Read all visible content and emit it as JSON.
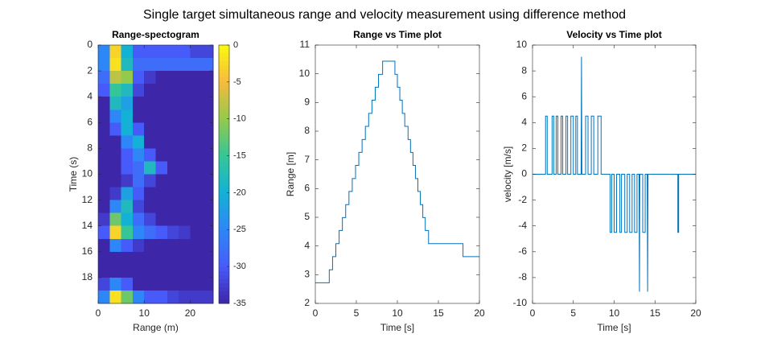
{
  "title": "Single target simultaneous range and velocity measurement using difference method",
  "chart_data": [
    {
      "type": "heatmap",
      "title": "Range-spectogram",
      "xlabel": "Range (m)",
      "ylabel": "Time (s)",
      "x_edges": [
        0,
        2.5,
        5,
        7.5,
        10,
        12.5,
        15,
        17.5,
        20,
        22.5,
        25
      ],
      "y_edges": [
        0,
        1,
        2,
        3,
        4,
        5,
        6,
        7,
        8,
        9,
        10,
        11,
        12,
        13,
        14,
        15,
        16,
        17,
        18,
        19,
        20
      ],
      "values": [
        [
          -25,
          -3,
          -20,
          -30,
          -30,
          -30,
          -30,
          -30,
          -32,
          -32
        ],
        [
          -25,
          -2,
          -18,
          -28,
          -28,
          -28,
          -28,
          -28,
          -28,
          -28
        ],
        [
          -28,
          -8,
          -10,
          -30,
          -33,
          -35,
          -35,
          -35,
          -35,
          -35
        ],
        [
          -30,
          -15,
          -18,
          -32,
          -35,
          -35,
          -35,
          -35,
          -35,
          -35
        ],
        [
          -35,
          -18,
          -22,
          -35,
          -35,
          -35,
          -35,
          -35,
          -35,
          -35
        ],
        [
          -35,
          -25,
          -20,
          -35,
          -35,
          -35,
          -35,
          -35,
          -35,
          -35
        ],
        [
          -35,
          -30,
          -20,
          -30,
          -35,
          -35,
          -35,
          -35,
          -35,
          -35
        ],
        [
          -35,
          -35,
          -25,
          -20,
          -35,
          -35,
          -35,
          -35,
          -35,
          -35
        ],
        [
          -35,
          -35,
          -30,
          -25,
          -30,
          -35,
          -35,
          -35,
          -35,
          -35
        ],
        [
          -35,
          -35,
          -30,
          -28,
          -18,
          -30,
          -35,
          -35,
          -35,
          -35
        ],
        [
          -35,
          -35,
          -33,
          -28,
          -32,
          -35,
          -35,
          -35,
          -35,
          -35
        ],
        [
          -35,
          -33,
          -22,
          -30,
          -35,
          -35,
          -35,
          -35,
          -35,
          -35
        ],
        [
          -35,
          -25,
          -18,
          -32,
          -35,
          -35,
          -35,
          -35,
          -35,
          -35
        ],
        [
          -33,
          -12,
          -20,
          -28,
          -32,
          -35,
          -35,
          -35,
          -35,
          -35
        ],
        [
          -30,
          -3,
          -15,
          -25,
          -28,
          -30,
          -32,
          -33,
          -35,
          -35
        ],
        [
          -35,
          -25,
          -30,
          -33,
          -35,
          -35,
          -35,
          -35,
          -35,
          -35
        ],
        [
          -35,
          -35,
          -35,
          -35,
          -35,
          -35,
          -35,
          -35,
          -35,
          -35
        ],
        [
          -35,
          -35,
          -35,
          -35,
          -35,
          -35,
          -35,
          -35,
          -35,
          -35
        ],
        [
          -32,
          -25,
          -30,
          -35,
          -35,
          -35,
          -35,
          -35,
          -35,
          -35
        ],
        [
          -25,
          -2,
          -12,
          -25,
          -30,
          -30,
          -32,
          -33,
          -33,
          -33
        ]
      ],
      "xlim": [
        0,
        25
      ],
      "ylim": [
        0,
        20
      ],
      "y_reversed": true,
      "xticks": [
        0,
        10,
        20
      ],
      "yticks": [
        0,
        2,
        4,
        6,
        8,
        10,
        12,
        14,
        16,
        18
      ],
      "colormap": "parula",
      "clim": [
        -35,
        0
      ],
      "cticks": [
        0,
        -5,
        -10,
        -15,
        -20,
        -25,
        -30,
        -35
      ]
    },
    {
      "type": "line",
      "title": "Range vs Time plot",
      "xlabel": "Time [s]",
      "ylabel": "Range [m]",
      "color": "#0072bd",
      "x": [
        0,
        1.7,
        1.7,
        2.1,
        2.1,
        2.5,
        2.5,
        2.9,
        2.9,
        3.3,
        3.3,
        3.7,
        3.7,
        4.1,
        4.1,
        4.5,
        4.5,
        4.9,
        4.9,
        5.3,
        5.3,
        5.7,
        5.7,
        6.1,
        6.1,
        6.5,
        6.5,
        6.9,
        6.9,
        7.3,
        7.3,
        7.7,
        7.7,
        8.2,
        8.2,
        9.7,
        9.7,
        10.0,
        10.0,
        10.3,
        10.3,
        10.6,
        10.6,
        10.9,
        10.9,
        11.3,
        11.3,
        11.6,
        11.6,
        11.9,
        11.9,
        12.2,
        12.2,
        12.5,
        12.5,
        12.8,
        12.8,
        13.1,
        13.1,
        13.4,
        13.4,
        13.8,
        13.8,
        18,
        18,
        20
      ],
      "values": [
        2.72,
        2.72,
        3.17,
        3.17,
        3.63,
        3.63,
        4.08,
        4.08,
        4.54,
        4.54,
        4.99,
        4.99,
        5.44,
        5.44,
        5.9,
        5.9,
        6.35,
        6.35,
        6.81,
        6.81,
        7.26,
        7.26,
        7.71,
        7.71,
        8.17,
        8.17,
        8.62,
        8.62,
        9.08,
        9.08,
        9.53,
        9.53,
        9.98,
        9.98,
        10.44,
        10.44,
        9.98,
        9.98,
        9.53,
        9.53,
        9.08,
        9.08,
        8.62,
        8.62,
        8.17,
        8.17,
        7.71,
        7.71,
        7.26,
        7.26,
        6.81,
        6.81,
        6.35,
        6.35,
        5.9,
        5.9,
        5.44,
        5.44,
        4.99,
        4.99,
        4.54,
        4.54,
        4.08,
        4.08,
        3.63,
        3.63
      ],
      "xlim": [
        0,
        20
      ],
      "ylim": [
        2,
        11
      ],
      "xticks": [
        0,
        5,
        10,
        15,
        20
      ],
      "yticks": [
        2,
        3,
        4,
        5,
        6,
        7,
        8,
        9,
        10,
        11
      ]
    },
    {
      "type": "line",
      "title": "Velocity vs Time plot",
      "xlabel": "Time [s]",
      "ylabel": "velocity [m/s]",
      "color": "#0072bd",
      "x": [
        0,
        1.6,
        1.6,
        1.8,
        1.8,
        2.4,
        2.4,
        2.6,
        2.6,
        2.9,
        2.9,
        3.1,
        3.1,
        3.5,
        3.5,
        3.7,
        3.7,
        4.1,
        4.1,
        4.3,
        4.3,
        4.7,
        4.7,
        5.0,
        5.0,
        5.3,
        5.3,
        5.5,
        5.5,
        5.95,
        6.0,
        6.05,
        6.5,
        6.5,
        6.8,
        6.8,
        7.2,
        7.2,
        7.5,
        7.5,
        8.0,
        8.0,
        8.4,
        8.4,
        9.5,
        9.5,
        9.7,
        9.7,
        10.0,
        10.0,
        10.3,
        10.3,
        10.7,
        10.7,
        10.9,
        10.9,
        11.3,
        11.3,
        11.6,
        11.6,
        11.9,
        11.9,
        12.2,
        12.2,
        12.5,
        12.5,
        12.8,
        12.8,
        13.05,
        13.1,
        13.15,
        13.5,
        13.5,
        13.8,
        13.8,
        14.05,
        14.1,
        14.15,
        17.8,
        17.8,
        17.9,
        17.9,
        20
      ],
      "values": [
        0,
        0,
        4.5,
        4.5,
        0,
        0,
        4.5,
        4.5,
        0,
        0,
        4.5,
        4.5,
        0,
        0,
        4.5,
        4.5,
        0,
        0,
        4.5,
        4.5,
        0,
        0,
        4.5,
        4.5,
        0,
        0,
        4.5,
        4.5,
        0,
        0,
        9.1,
        0,
        0,
        4.5,
        4.5,
        0,
        0,
        4.5,
        4.5,
        0,
        0,
        4.5,
        4.5,
        0,
        0,
        -4.5,
        -4.5,
        0,
        0,
        -4.5,
        -4.5,
        0,
        0,
        -4.5,
        -4.5,
        0,
        0,
        -4.5,
        -4.5,
        0,
        0,
        -4.5,
        -4.5,
        0,
        0,
        -4.5,
        -4.5,
        0,
        0,
        -9.1,
        0,
        0,
        -4.5,
        -4.5,
        0,
        0,
        -9.1,
        0,
        0,
        -4.5,
        -4.5,
        0,
        0
      ],
      "xlim": [
        0,
        20
      ],
      "ylim": [
        -10,
        10
      ],
      "xticks": [
        0,
        5,
        10,
        15,
        20
      ],
      "yticks": [
        -10,
        -8,
        -6,
        -4,
        -2,
        0,
        2,
        4,
        6,
        8,
        10
      ]
    }
  ]
}
